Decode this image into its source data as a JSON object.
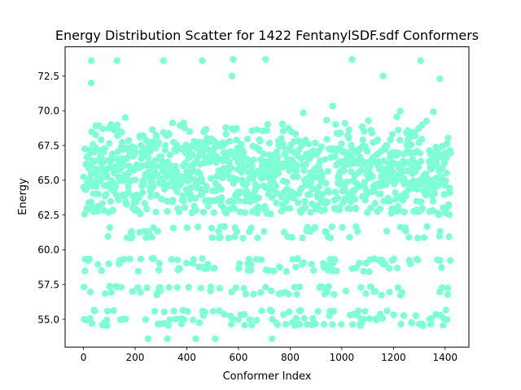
{
  "chart_data": {
    "type": "scatter",
    "title": "Energy Distribution Scatter for 1422 FentanylSDF.sdf Conformers",
    "xlabel": "Conformer Index",
    "ylabel": "Energy",
    "xlim": [
      -71,
      1492
    ],
    "ylim": [
      53.0,
      74.6
    ],
    "xticks": [
      0,
      200,
      400,
      600,
      800,
      1000,
      1200,
      1400
    ],
    "yticks": [
      55.0,
      57.5,
      60.0,
      62.5,
      65.0,
      67.5,
      70.0,
      72.5
    ],
    "ytick_labels": [
      "55.0",
      "57.5",
      "60.0",
      "62.5",
      "65.0",
      "67.5",
      "70.0",
      "72.5"
    ],
    "n_points": 1422,
    "energy_levels": [
      54.6,
      54.7,
      55.0,
      55.3,
      55.6,
      56.8,
      57.0,
      57.3,
      58.5,
      58.7,
      59.0,
      59.3,
      60.9,
      61.3,
      61.6,
      62.7,
      62.8,
      63.0,
      63.5,
      64.0
    ],
    "bulk_band": [
      62.5,
      69.0
    ],
    "bulk_center": 65.8,
    "notable_points": [
      {
        "x": 30,
        "y": 73.6
      },
      {
        "x": 130,
        "y": 73.6
      },
      {
        "x": 310,
        "y": 73.6
      },
      {
        "x": 460,
        "y": 73.6
      },
      {
        "x": 580,
        "y": 73.7
      },
      {
        "x": 705,
        "y": 73.7
      },
      {
        "x": 1040,
        "y": 73.7
      },
      {
        "x": 1305,
        "y": 73.6
      },
      {
        "x": 30,
        "y": 72.0
      },
      {
        "x": 575,
        "y": 72.5
      },
      {
        "x": 1380,
        "y": 72.3
      },
      {
        "x": 1160,
        "y": 72.5
      },
      {
        "x": 250,
        "y": 53.6
      },
      {
        "x": 325,
        "y": 53.6
      },
      {
        "x": 435,
        "y": 53.6
      },
      {
        "x": 510,
        "y": 53.6
      },
      {
        "x": 730,
        "y": 53.6
      }
    ],
    "marker_color": "#7fffd4",
    "grid": false,
    "legend": "none"
  }
}
